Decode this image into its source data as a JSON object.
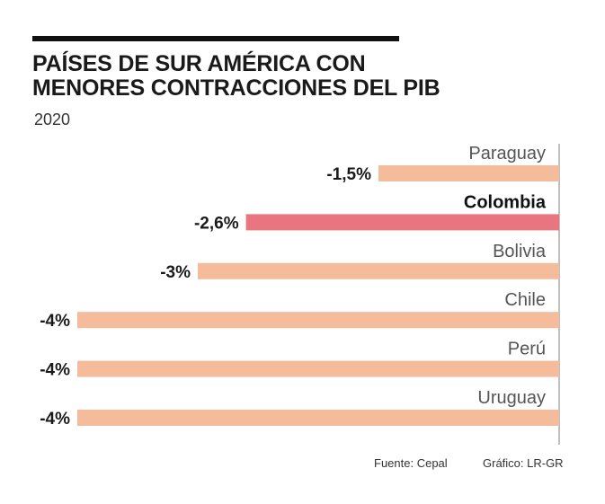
{
  "header": {
    "title": "PAÍSES DE SUR AMÉRICA CON\nMENORES CONTRACCIONES DEL PIB",
    "subtitle": "2020"
  },
  "footer": {
    "source": "Fuente: Cepal",
    "credit": "Gráfico: LR-GR"
  },
  "chart_data": {
    "type": "bar",
    "orientation": "horizontal",
    "title": "PAÍSES DE SUR AMÉRICA CON MENORES CONTRACCIONES DEL PIB",
    "subtitle": "2020",
    "categories": [
      "Paraguay",
      "Colombia",
      "Bolivia",
      "Chile",
      "Perú",
      "Uruguay"
    ],
    "values": [
      -1.5,
      -2.6,
      -3,
      -4,
      -4,
      -4
    ],
    "value_labels": [
      "-1,5%",
      "-2,6%",
      "-3%",
      "-4%",
      "-4%",
      "-4%"
    ],
    "highlight": "Colombia",
    "xlim": [
      -4,
      0
    ],
    "grid": false,
    "colors": {
      "bar": "#f4bc9a",
      "highlight": "#e8757f",
      "axis": "#aaaaaa",
      "text": "#1a1a1a"
    }
  }
}
